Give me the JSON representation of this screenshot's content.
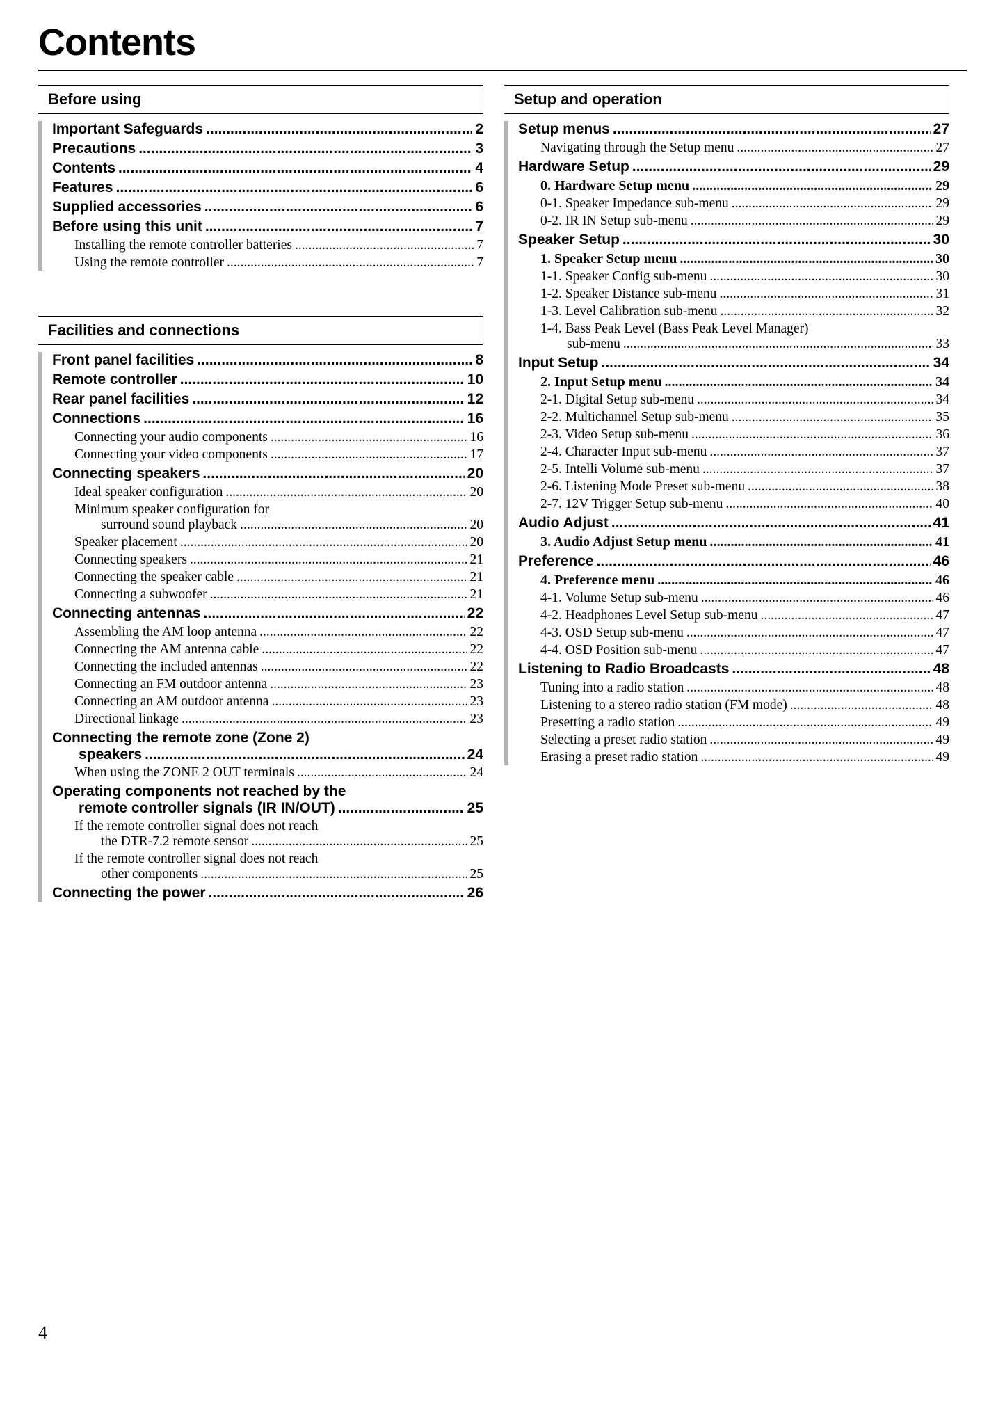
{
  "title": "Contents",
  "page_number": "4",
  "dots": ". . . . . . . . . . . . . . . . . . . . . . . . . . . . . . . . . . . . . . . . . . . . . . . . . . . . . . . . . . . . . . . . . . . . . . . . . . . . . . . . . . . . . . . . . . . . . . . . . . . . . . . . . . . . . . . . . . . . . . . .",
  "dots_bold": "..............................................................................................................................",
  "dots_serif": "..........................................................................................................................................................",
  "left": {
    "sections": [
      {
        "header": "Before using",
        "items": [
          {
            "level": 1,
            "label": "Important Safeguards",
            "page": "2"
          },
          {
            "level": 1,
            "label": "Precautions",
            "page": "3"
          },
          {
            "level": 1,
            "label": "Contents",
            "page": "4"
          },
          {
            "level": 1,
            "label": "Features",
            "page": "6"
          },
          {
            "level": 1,
            "label": "Supplied accessories",
            "page": "6"
          },
          {
            "level": 1,
            "label": "Before using this unit",
            "page": "7"
          },
          {
            "level": 2,
            "label": "Installing the remote controller batteries",
            "page": "7"
          },
          {
            "level": 2,
            "label": "Using the remote controller",
            "page": "7"
          }
        ]
      },
      {
        "header": "Facilities and connections",
        "items": [
          {
            "level": 1,
            "label": "Front panel facilities",
            "page": "8"
          },
          {
            "level": 1,
            "label": "Remote controller",
            "page": "10"
          },
          {
            "level": 1,
            "label": "Rear panel facilities",
            "page": "12"
          },
          {
            "level": 1,
            "label": "Connections",
            "page": "16"
          },
          {
            "level": 2,
            "label": "Connecting your audio components",
            "page": "16"
          },
          {
            "level": 2,
            "label": "Connecting your video components",
            "page": "17"
          },
          {
            "level": 1,
            "label": "Connecting speakers",
            "page": "20"
          },
          {
            "level": 2,
            "label": "Ideal speaker configuration",
            "page": "20"
          },
          {
            "level": 2,
            "multi": true,
            "label1": "Minimum speaker configuration for",
            "label2": "surround sound playback",
            "page": "20"
          },
          {
            "level": 2,
            "label": "Speaker placement",
            "page": "20"
          },
          {
            "level": 2,
            "label": "Connecting speakers",
            "page": "21"
          },
          {
            "level": 2,
            "label": "Connecting the speaker cable",
            "page": "21"
          },
          {
            "level": 2,
            "label": "Connecting a subwoofer",
            "page": "21"
          },
          {
            "level": 1,
            "label": "Connecting antennas",
            "page": "22"
          },
          {
            "level": 2,
            "label": "Assembling the AM loop antenna",
            "page": "22"
          },
          {
            "level": 2,
            "label": "Connecting the AM antenna cable",
            "page": "22"
          },
          {
            "level": 2,
            "label": "Connecting the included antennas",
            "page": "22"
          },
          {
            "level": 2,
            "label": "Connecting an FM outdoor antenna",
            "page": "23"
          },
          {
            "level": 2,
            "label": "Connecting an AM outdoor antenna",
            "page": "23"
          },
          {
            "level": 2,
            "label": "Directional linkage",
            "page": "23"
          },
          {
            "level": 1,
            "multi": true,
            "label1": "Connecting the remote zone (Zone 2)",
            "label2": "speakers",
            "page": "24"
          },
          {
            "level": 2,
            "label": "When using the ZONE 2 OUT terminals",
            "page": "24"
          },
          {
            "level": 1,
            "multi": true,
            "label1": "Operating components not reached by the",
            "label2": "remote controller signals (IR IN/OUT)",
            "page": "25"
          },
          {
            "level": 2,
            "multi": true,
            "label1": "If the remote controller signal does not reach",
            "label2": "the DTR-7.2 remote sensor",
            "page": "25"
          },
          {
            "level": 2,
            "multi": true,
            "label1": "If the remote controller signal does not reach",
            "label2": "other components",
            "page": "25"
          },
          {
            "level": 1,
            "label": "Connecting the power",
            "page": "26"
          }
        ]
      }
    ]
  },
  "right": {
    "sections": [
      {
        "header": "Setup and operation",
        "items": [
          {
            "level": 1,
            "label": "Setup menus",
            "page": "27"
          },
          {
            "level": 2,
            "label": "Navigating through the Setup menu",
            "page": "27"
          },
          {
            "level": 1,
            "label": "Hardware Setup",
            "page": "29"
          },
          {
            "level": "2b",
            "label": "0. Hardware Setup menu",
            "page": "29"
          },
          {
            "level": 2,
            "label": "0-1. Speaker Impedance sub-menu",
            "page": "29"
          },
          {
            "level": 2,
            "label": "0-2. IR IN Setup sub-menu",
            "page": "29"
          },
          {
            "level": 1,
            "label": "Speaker Setup",
            "page": "30"
          },
          {
            "level": "2b",
            "label": "1. Speaker Setup menu",
            "page": "30"
          },
          {
            "level": 2,
            "label": "1-1. Speaker Config sub-menu",
            "page": "30"
          },
          {
            "level": 2,
            "label": "1-2. Speaker Distance sub-menu",
            "page": "31"
          },
          {
            "level": 2,
            "label": "1-3. Level Calibration sub-menu",
            "page": "32"
          },
          {
            "level": 2,
            "multi": true,
            "label1": "1-4. Bass Peak Level (Bass Peak Level Manager)",
            "label2": "sub-menu",
            "page": "33"
          },
          {
            "level": 1,
            "label": "Input Setup",
            "page": "34"
          },
          {
            "level": "2b",
            "label": "2. Input Setup menu",
            "page": "34"
          },
          {
            "level": 2,
            "label": "2-1. Digital Setup sub-menu",
            "page": "34"
          },
          {
            "level": 2,
            "label": "2-2. Multichannel Setup sub-menu",
            "page": "35"
          },
          {
            "level": 2,
            "label": "2-3. Video Setup sub-menu",
            "page": "36"
          },
          {
            "level": 2,
            "label": "2-4. Character Input sub-menu",
            "page": "37"
          },
          {
            "level": 2,
            "label": "2-5. Intelli Volume sub-menu",
            "page": "37"
          },
          {
            "level": 2,
            "label": "2-6. Listening Mode Preset sub-menu",
            "page": "38"
          },
          {
            "level": 2,
            "label": "2-7. 12V Trigger Setup sub-menu",
            "page": "40"
          },
          {
            "level": 1,
            "label": "Audio Adjust",
            "page": "41"
          },
          {
            "level": "2b",
            "label": "3. Audio Adjust Setup menu",
            "page": "41"
          },
          {
            "level": 1,
            "label": "Preference",
            "page": "46"
          },
          {
            "level": "2b",
            "label": "4. Preference menu",
            "page": "46"
          },
          {
            "level": 2,
            "label": "4-1. Volume Setup sub-menu",
            "page": "46"
          },
          {
            "level": 2,
            "label": "4-2. Headphones Level Setup sub-menu",
            "page": "47"
          },
          {
            "level": 2,
            "label": "4-3. OSD Setup sub-menu",
            "page": "47"
          },
          {
            "level": 2,
            "label": "4-4. OSD Position sub-menu",
            "page": "47"
          },
          {
            "level": 1,
            "label": "Listening to Radio Broadcasts",
            "page": "48"
          },
          {
            "level": 2,
            "label": "Tuning into a radio station",
            "page": "48"
          },
          {
            "level": 2,
            "label": "Listening to a stereo radio station (FM mode)",
            "page": "48"
          },
          {
            "level": 2,
            "label": "Presetting a radio station",
            "page": "49"
          },
          {
            "level": 2,
            "label": "Selecting a preset radio station",
            "page": "49"
          },
          {
            "level": 2,
            "label": "Erasing a preset radio station",
            "page": "49"
          }
        ]
      }
    ]
  }
}
